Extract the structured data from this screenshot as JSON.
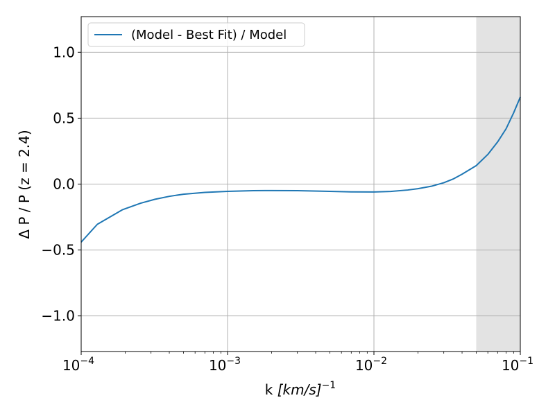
{
  "chart_data": {
    "type": "line",
    "xlabel": {
      "main": "k ",
      "italic": "[km/s]",
      "exp": "−1"
    },
    "ylabel": "Δ P / P   (z = 2.4)",
    "x_scale": "log",
    "xlim": [
      0.0001,
      0.1
    ],
    "ylim": [
      -1.27,
      1.27
    ],
    "x_ticks": [
      {
        "value": 0.0001,
        "base": "10",
        "exp": "−4"
      },
      {
        "value": 0.001,
        "base": "10",
        "exp": "−3"
      },
      {
        "value": 0.01,
        "base": "10",
        "exp": "−2"
      },
      {
        "value": 0.1,
        "base": "10",
        "exp": "−1"
      }
    ],
    "y_ticks": [
      {
        "value": 1.0,
        "label": "1.0"
      },
      {
        "value": 0.5,
        "label": "0.5"
      },
      {
        "value": 0.0,
        "label": "0.0"
      },
      {
        "value": -0.5,
        "label": "−0.5"
      },
      {
        "value": -1.0,
        "label": "−1.0"
      }
    ],
    "grid": true,
    "legend_position": "top-left",
    "shaded_region": {
      "x_start": 0.05,
      "x_end": 0.1,
      "color": "#e3e3e3"
    },
    "series": [
      {
        "name": "(Model - Best Fit) / Model",
        "color": "#1f77b4",
        "x": [
          0.0001,
          0.000129,
          0.000191,
          0.000255,
          0.00032,
          0.0004,
          0.0005,
          0.0007,
          0.001,
          0.0015,
          0.002,
          0.003,
          0.005,
          0.007,
          0.01,
          0.013,
          0.017,
          0.02,
          0.025,
          0.03,
          0.035,
          0.04,
          0.05,
          0.06,
          0.07,
          0.08,
          0.09,
          0.1
        ],
        "y": [
          -0.44,
          -0.305,
          -0.195,
          -0.145,
          -0.115,
          -0.093,
          -0.077,
          -0.063,
          -0.055,
          -0.05,
          -0.049,
          -0.05,
          -0.055,
          -0.059,
          -0.06,
          -0.056,
          -0.045,
          -0.035,
          -0.015,
          0.01,
          0.04,
          0.075,
          0.14,
          0.225,
          0.32,
          0.42,
          0.54,
          0.66
        ]
      }
    ]
  }
}
